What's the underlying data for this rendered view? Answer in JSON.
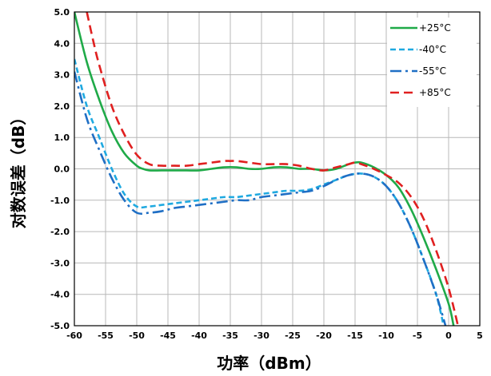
{
  "chart_data": {
    "type": "line",
    "title": "",
    "xlabel": "功率（dBm）",
    "ylabel": "对数误差（dB）",
    "xlim": [
      -60,
      5
    ],
    "ylim": [
      -5.0,
      5.0
    ],
    "x_ticks": [
      -60,
      -55,
      -50,
      -45,
      -40,
      -35,
      -30,
      -25,
      -20,
      -15,
      -10,
      -5,
      0,
      5
    ],
    "x_tick_labels": [
      "-60",
      "-55",
      "-50",
      "-45",
      "-40",
      "-35",
      "-30",
      "-25",
      "-20",
      "-15",
      "-10",
      "-5",
      "0",
      "5"
    ],
    "y_ticks": [
      5.0,
      4.0,
      3.0,
      2.0,
      1.0,
      0.0,
      -1.0,
      -2.0,
      -3.0,
      -4.0,
      -5.0
    ],
    "y_tick_labels": [
      "5.0",
      "4.0",
      "3.0",
      "2.0",
      "1.0",
      "0.0",
      "-1.0",
      "-2.0",
      "-3.0",
      "-4.0",
      "-5.0"
    ],
    "grid": true,
    "legend_position": "top-right",
    "series": [
      {
        "name": "+25°C",
        "color": "#1faa48",
        "dash": "solid",
        "x": [
          -60,
          -58,
          -56,
          -54,
          -52,
          -50,
          -49,
          -48,
          -46,
          -44,
          -42,
          -40,
          -38,
          -36,
          -34,
          -32,
          -30,
          -28,
          -26,
          -24,
          -22,
          -20,
          -18,
          -16,
          -15,
          -14,
          -12,
          -10,
          -8,
          -6,
          -4,
          -2,
          0,
          0.8
        ],
        "y": [
          5.0,
          3.4,
          2.2,
          1.2,
          0.5,
          0.1,
          0.0,
          -0.05,
          -0.05,
          -0.05,
          -0.05,
          -0.05,
          0.0,
          0.05,
          0.05,
          0.0,
          0.0,
          0.05,
          0.05,
          0.0,
          0.0,
          -0.05,
          0.0,
          0.15,
          0.2,
          0.2,
          0.05,
          -0.2,
          -0.6,
          -1.3,
          -2.2,
          -3.2,
          -4.3,
          -5.0
        ]
      },
      {
        "name": "-40°C",
        "color": "#1fa9e0",
        "dash": "short-dash",
        "x": [
          -60,
          -58,
          -56,
          -54,
          -52,
          -50,
          -48,
          -46,
          -44,
          -42,
          -40,
          -38,
          -36,
          -34,
          -32,
          -30,
          -28,
          -26,
          -24,
          -22,
          -20,
          -18,
          -16,
          -14,
          -12,
          -10,
          -8,
          -6,
          -4,
          -2,
          -0.8
        ],
        "y": [
          3.5,
          2.0,
          1.0,
          0.0,
          -0.8,
          -1.2,
          -1.2,
          -1.15,
          -1.1,
          -1.05,
          -1.0,
          -0.95,
          -0.9,
          -0.9,
          -0.85,
          -0.8,
          -0.75,
          -0.7,
          -0.7,
          -0.65,
          -0.5,
          -0.35,
          -0.2,
          -0.15,
          -0.25,
          -0.55,
          -1.1,
          -1.9,
          -2.9,
          -4.0,
          -5.0
        ]
      },
      {
        "name": "-55°C",
        "color": "#1f6fc5",
        "dash": "dash-dot",
        "x": [
          -60,
          -58,
          -56,
          -54,
          -52,
          -50,
          -48,
          -46,
          -44,
          -42,
          -40,
          -38,
          -36,
          -34,
          -32,
          -30,
          -28,
          -26,
          -24,
          -22,
          -20,
          -18,
          -16,
          -14,
          -12,
          -10,
          -8,
          -6,
          -4,
          -2,
          -0.5
        ],
        "y": [
          3.1,
          1.6,
          0.6,
          -0.3,
          -1.0,
          -1.4,
          -1.4,
          -1.35,
          -1.25,
          -1.2,
          -1.15,
          -1.1,
          -1.05,
          -1.0,
          -1.0,
          -0.9,
          -0.85,
          -0.8,
          -0.75,
          -0.7,
          -0.55,
          -0.35,
          -0.2,
          -0.15,
          -0.25,
          -0.55,
          -1.1,
          -1.9,
          -2.9,
          -4.0,
          -5.0
        ]
      },
      {
        "name": "+85°C",
        "color": "#e02020",
        "dash": "long-dash",
        "x": [
          -58,
          -57,
          -56,
          -54,
          -52,
          -50,
          -48,
          -46,
          -44,
          -42,
          -40,
          -38,
          -36,
          -35,
          -34,
          -32,
          -30,
          -28,
          -26,
          -24,
          -22,
          -20,
          -18,
          -16,
          -15,
          -14,
          -12,
          -10,
          -8,
          -6,
          -4,
          -2,
          0,
          1.5
        ],
        "y": [
          5.0,
          4.1,
          3.3,
          2.0,
          1.1,
          0.45,
          0.15,
          0.1,
          0.1,
          0.1,
          0.15,
          0.2,
          0.25,
          0.25,
          0.25,
          0.2,
          0.15,
          0.15,
          0.15,
          0.1,
          0.0,
          -0.05,
          0.05,
          0.15,
          0.2,
          0.15,
          0.0,
          -0.2,
          -0.45,
          -0.9,
          -1.6,
          -2.6,
          -3.8,
          -5.0
        ]
      }
    ]
  }
}
